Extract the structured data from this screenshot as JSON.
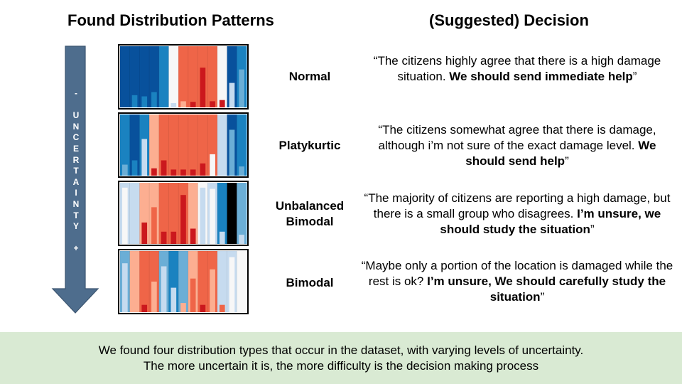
{
  "headings": {
    "left": "Found Distribution Patterns",
    "right": "(Suggested) Decision"
  },
  "arrow": {
    "top_sign": "-",
    "word": "UNCERTAINTY",
    "bottom_sign": "+",
    "color": "#4e6d8d"
  },
  "colors": {
    "strips": [
      "#08519c",
      "#1a82c0",
      "#6baed6",
      "#c6dbef",
      "#f7f7f7",
      "#fcae91",
      "#ef6548",
      "#cb181d",
      "#000000"
    ],
    "footer_bg": "#d9ead3"
  },
  "patterns": [
    {
      "label_lines": [
        "Normal"
      ],
      "strips": [
        0,
        0,
        0,
        0,
        1,
        4,
        6,
        6,
        6,
        6,
        4,
        0,
        1
      ],
      "bars": [
        {
          "strip": 1,
          "level": 0.2,
          "color": 1
        },
        {
          "strip": 2,
          "level": 0.18,
          "color": 1
        },
        {
          "strip": 3,
          "level": 0.25,
          "color": 1
        },
        {
          "strip": 4,
          "level": 0.15,
          "color": 1
        },
        {
          "strip": 5,
          "level": 0.07,
          "color": 3
        },
        {
          "strip": 6,
          "level": 0.1,
          "color": 5
        },
        {
          "strip": 7,
          "level": 0.09,
          "color": 7
        },
        {
          "strip": 8,
          "level": 0.65,
          "color": 7
        },
        {
          "strip": 9,
          "level": 0.1,
          "color": 7
        },
        {
          "strip": 10,
          "level": 0.12,
          "color": 7
        },
        {
          "strip": 11,
          "level": 0.4,
          "color": 3
        },
        {
          "strip": 12,
          "level": 0.62,
          "color": 2
        }
      ],
      "decision": {
        "open": "“",
        "plain": "The citizens highly agree that there is a high damage situation. ",
        "bold": "We should send immediate help",
        "close": "”"
      }
    },
    {
      "label_lines": [
        "Platykurtic"
      ],
      "strips": [
        1,
        0,
        1,
        5,
        6,
        6,
        6,
        6,
        6,
        6,
        3,
        0,
        1
      ],
      "bars": [
        {
          "strip": 0,
          "level": 0.18,
          "color": 2
        },
        {
          "strip": 1,
          "level": 0.25,
          "color": 1
        },
        {
          "strip": 2,
          "level": 0.6,
          "color": 3
        },
        {
          "strip": 3,
          "level": 0.12,
          "color": 7
        },
        {
          "strip": 4,
          "level": 0.25,
          "color": 7
        },
        {
          "strip": 5,
          "level": 0.1,
          "color": 7
        },
        {
          "strip": 6,
          "level": 0.1,
          "color": 7
        },
        {
          "strip": 7,
          "level": 0.1,
          "color": 7
        },
        {
          "strip": 8,
          "level": 0.2,
          "color": 7
        },
        {
          "strip": 9,
          "level": 0.35,
          "color": 4
        },
        {
          "strip": 10,
          "level": 0.3,
          "color": 3
        },
        {
          "strip": 11,
          "level": 0.75,
          "color": 2
        },
        {
          "strip": 12,
          "level": 0.15,
          "color": 2
        }
      ],
      "decision": {
        "open": "“",
        "plain": "The citizens somewhat agree that there is damage, although i’m not sure of the exact damage level. ",
        "bold": "We should send help",
        "close": "”"
      }
    },
    {
      "label_lines": [
        "Unbalanced",
        "Bimodal"
      ],
      "strips": [
        3,
        3,
        5,
        5,
        6,
        6,
        6,
        5,
        4,
        3,
        1,
        8,
        2
      ],
      "bars": [
        {
          "strip": 0,
          "level": 0.92,
          "color": 4
        },
        {
          "strip": 1,
          "level": 0.15,
          "color": 3
        },
        {
          "strip": 2,
          "level": 0.35,
          "color": 7
        },
        {
          "strip": 3,
          "level": 0.6,
          "color": 6
        },
        {
          "strip": 4,
          "level": 0.2,
          "color": 7
        },
        {
          "strip": 5,
          "level": 0.2,
          "color": 7
        },
        {
          "strip": 6,
          "level": 0.8,
          "color": 7
        },
        {
          "strip": 7,
          "level": 0.25,
          "color": 7
        },
        {
          "strip": 8,
          "level": 0.92,
          "color": 3
        },
        {
          "strip": 9,
          "level": 0.9,
          "color": 4
        },
        {
          "strip": 10,
          "level": 0.2,
          "color": 3
        },
        {
          "strip": 12,
          "level": 0.15,
          "color": 3
        }
      ],
      "decision": {
        "open": "“",
        "plain": "The majority of citizens are reporting a high damage, but there is a small group who disagrees. ",
        "bold": "I’m unsure, we should study the situation",
        "close": "”"
      }
    },
    {
      "label_lines": [
        "Bimodal"
      ],
      "strips": [
        2,
        5,
        6,
        6,
        2,
        1,
        2,
        5,
        6,
        6,
        3,
        3,
        4
      ],
      "bars": [
        {
          "strip": 0,
          "level": 0.8,
          "color": 3
        },
        {
          "strip": 1,
          "level": 0.7,
          "color": 5
        },
        {
          "strip": 2,
          "level": 0.12,
          "color": 7
        },
        {
          "strip": 3,
          "level": 0.5,
          "color": 5
        },
        {
          "strip": 4,
          "level": 0.75,
          "color": 3
        },
        {
          "strip": 5,
          "level": 0.4,
          "color": 3
        },
        {
          "strip": 6,
          "level": 0.15,
          "color": 5
        },
        {
          "strip": 7,
          "level": 0.55,
          "color": 6
        },
        {
          "strip": 8,
          "level": 0.12,
          "color": 7
        },
        {
          "strip": 9,
          "level": 0.7,
          "color": 5
        },
        {
          "strip": 10,
          "level": 0.12,
          "color": 6
        },
        {
          "strip": 11,
          "level": 0.9,
          "color": 4
        },
        {
          "strip": 12,
          "level": 0.9,
          "color": 4
        }
      ],
      "decision": {
        "open": "“",
        "plain": "Maybe only a portion of the location is damaged while the rest is ok? ",
        "bold": "I’m unsure, We should carefully study the situation",
        "close": "”"
      }
    }
  ],
  "footer": {
    "line1": "We found four distribution types that occur in the dataset, with varying levels of uncertainty.",
    "line2": "The more uncertain it is, the more difficulty is the decision making process"
  }
}
